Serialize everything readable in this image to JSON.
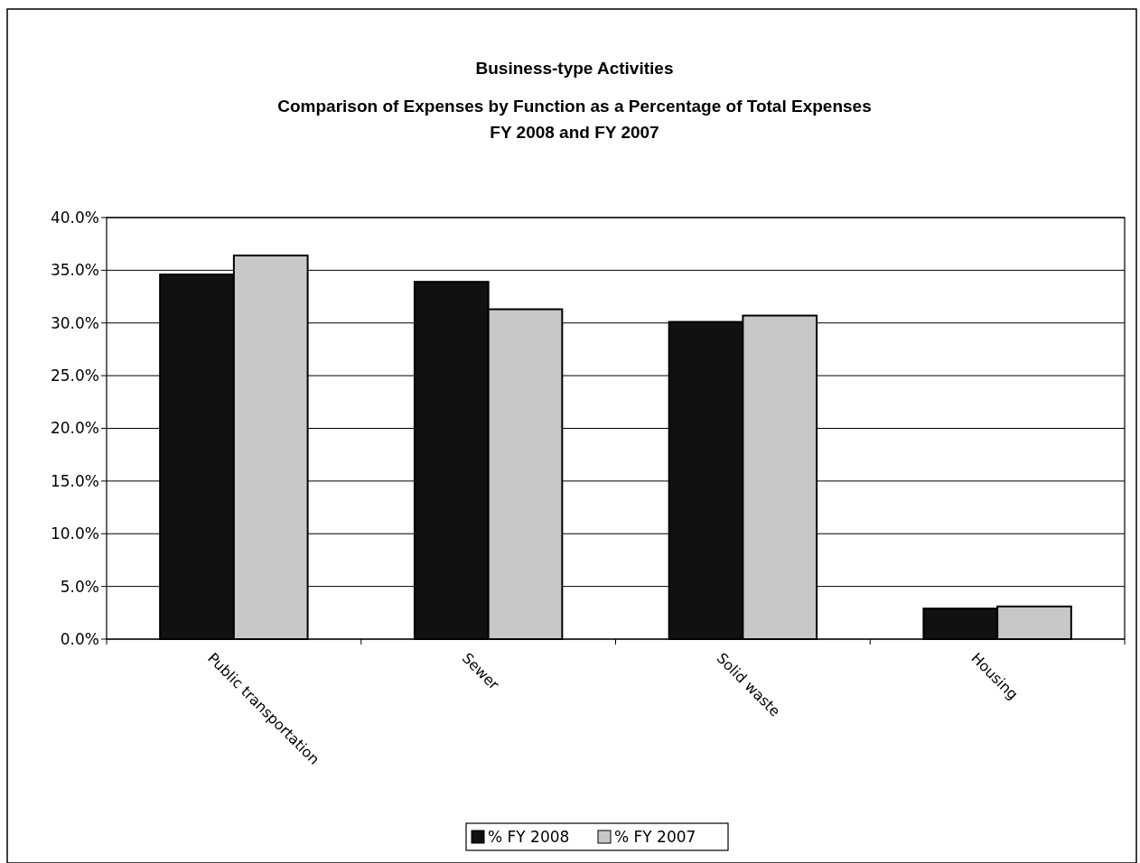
{
  "chart_data": {
    "type": "bar",
    "title": "Business-type Activities",
    "subtitle": "Comparison of Expenses by Function as a Percentage of Total Expenses\nFY 2008 and FY 2007",
    "categories": [
      "Public transportation",
      "Sewer",
      "Solid waste",
      "Housing"
    ],
    "series": [
      {
        "name": "% FY 2008",
        "color": "#111111",
        "values": [
          34.6,
          33.9,
          30.1,
          2.9
        ]
      },
      {
        "name": "% FY 2007",
        "color": "#c8c8c8",
        "values": [
          36.4,
          31.3,
          30.7,
          3.1
        ]
      }
    ],
    "ylim": [
      0,
      40
    ],
    "yticks": [
      {
        "value": 0,
        "label": "0.0%"
      },
      {
        "value": 5,
        "label": "5.0%"
      },
      {
        "value": 10,
        "label": "10.0%"
      },
      {
        "value": 15,
        "label": "15.0%"
      },
      {
        "value": 20,
        "label": "20.0%"
      },
      {
        "value": 25,
        "label": "25.0%"
      },
      {
        "value": 30,
        "label": "30.0%"
      },
      {
        "value": 35,
        "label": "35.0%"
      },
      {
        "value": 40,
        "label": "40.0%"
      }
    ],
    "grid": "y",
    "legend": "bottom"
  }
}
